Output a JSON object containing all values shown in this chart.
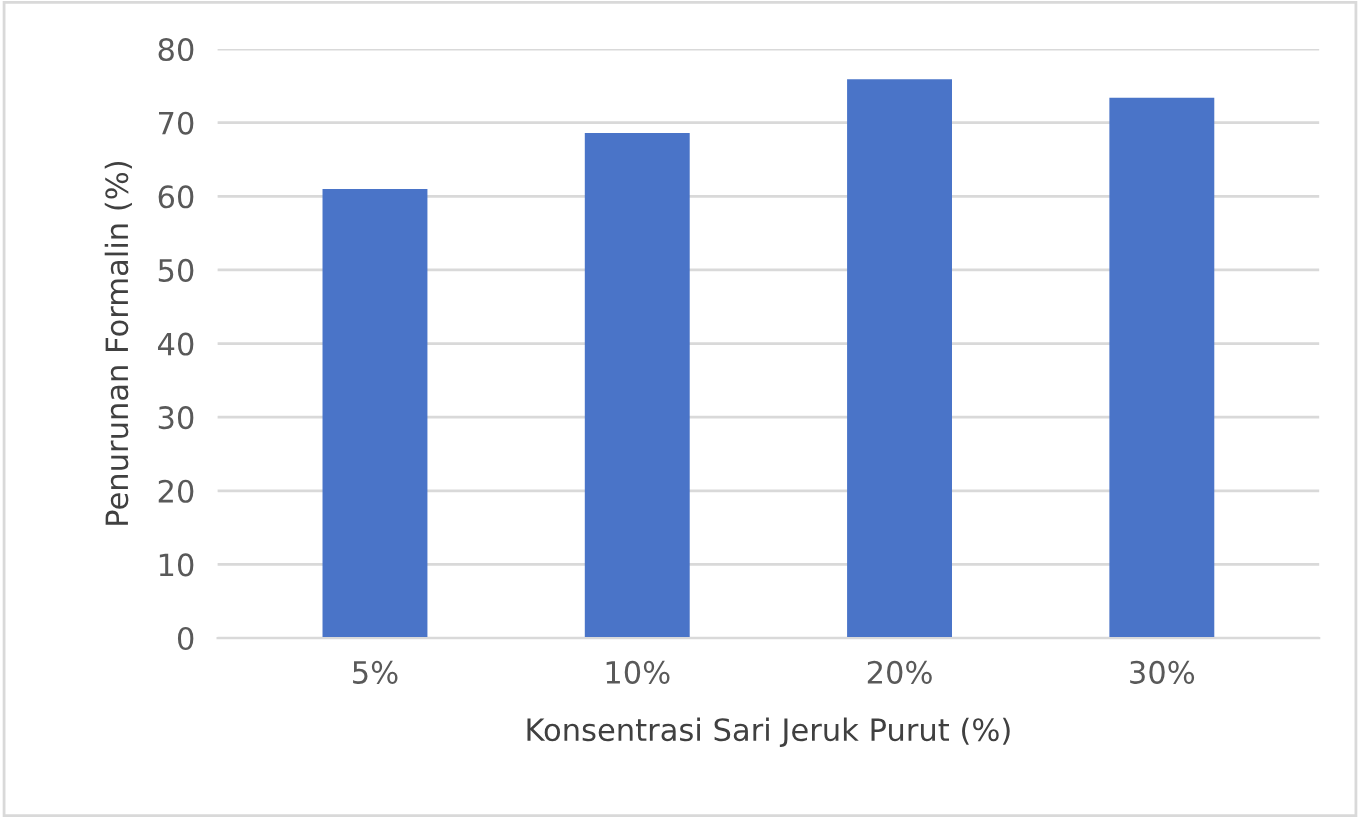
{
  "chart_data": {
    "type": "bar",
    "xlabel": "Konsentrasi Sari Jeruk Purut (%)",
    "ylabel": "Penurunan Formalin (%)",
    "categories": [
      "5%",
      "10%",
      "20%",
      "30%"
    ],
    "values": [
      61,
      68.6,
      75.9,
      73.4
    ],
    "color": "#4a74c8",
    "ylim": [
      0,
      80
    ],
    "yticks": [
      0,
      10,
      20,
      30,
      40,
      50,
      60,
      70,
      80
    ],
    "grid": "y"
  }
}
